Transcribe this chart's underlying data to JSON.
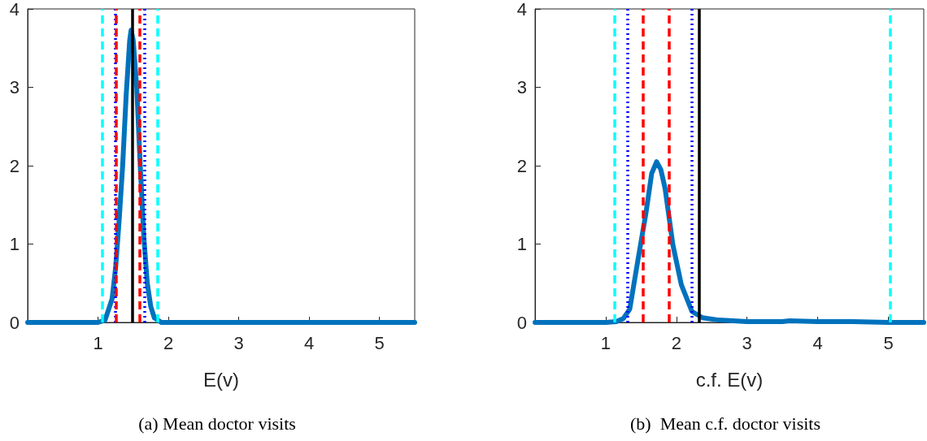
{
  "chart_data": [
    {
      "type": "line",
      "title": "(a) Mean doctor visits",
      "xlabel": "E(v)",
      "series": [
        {
          "color": "#0072bd",
          "x": [
            0,
            0.5,
            1.0,
            1.1,
            1.2,
            1.25,
            1.3,
            1.35,
            1.4,
            1.45,
            1.47,
            1.5,
            1.55,
            1.6,
            1.65,
            1.7,
            1.75,
            1.8,
            1.9,
            2.5,
            3,
            4,
            5,
            5.5
          ],
          "values": [
            0,
            0,
            0,
            0.03,
            0.3,
            0.7,
            1.3,
            2.0,
            2.9,
            3.6,
            3.73,
            3.6,
            3.0,
            2.0,
            1.1,
            0.5,
            0.2,
            0.06,
            0,
            0,
            0,
            0,
            0,
            0
          ]
        }
      ],
      "xlim": [
        0,
        5.5
      ],
      "xticks": [
        1,
        2,
        3,
        4,
        5
      ],
      "ylim": [
        0,
        4
      ],
      "yticks": [
        0,
        1,
        2,
        3,
        4
      ],
      "ref_lines": [
        {
          "axis": "x",
          "value": 1.06,
          "color": "#00ffff",
          "line_style": "dashed"
        },
        {
          "axis": "x",
          "value": 1.24,
          "color": "#0000ff",
          "line_style": "dotted"
        },
        {
          "axis": "x",
          "value": 1.26,
          "color": "#ff0000",
          "line_style": "dashed"
        },
        {
          "axis": "x",
          "value": 1.49,
          "color": "#000000",
          "line_style": "solid"
        },
        {
          "axis": "x",
          "value": 1.59,
          "color": "#ff0000",
          "line_style": "dashed"
        },
        {
          "axis": "x",
          "value": 1.66,
          "color": "#0000ff",
          "line_style": "dotted"
        },
        {
          "axis": "x",
          "value": 1.85,
          "color": "#00ffff",
          "line_style": "dashed"
        }
      ],
      "grid": false
    },
    {
      "type": "line",
      "title": "(b)  Mean c.f. doctor visits",
      "xlabel": "c.f. E(v)",
      "series": [
        {
          "color": "#0072bd",
          "x": [
            0,
            0.5,
            1.0,
            1.15,
            1.25,
            1.34,
            1.46,
            1.57,
            1.65,
            1.72,
            1.78,
            1.84,
            1.95,
            2.07,
            2.22,
            2.37,
            2.6,
            3.0,
            3.5,
            3.6,
            4.0,
            4.5,
            5.0,
            5.5
          ],
          "values": [
            0,
            0,
            0,
            0.01,
            0.05,
            0.17,
            0.82,
            1.4,
            1.9,
            2.05,
            1.95,
            1.71,
            0.99,
            0.48,
            0.14,
            0.06,
            0.03,
            0.01,
            0.01,
            0.02,
            0.01,
            0.01,
            0,
            0
          ]
        }
      ],
      "xlim": [
        0,
        5.5
      ],
      "xticks": [
        1,
        2,
        3,
        4,
        5
      ],
      "ylim": [
        0,
        4
      ],
      "yticks": [
        0,
        1,
        2,
        3,
        4
      ],
      "ref_lines": [
        {
          "axis": "x",
          "value": 1.13,
          "color": "#00ffff",
          "line_style": "dashed"
        },
        {
          "axis": "x",
          "value": 1.31,
          "color": "#0000ff",
          "line_style": "dotted"
        },
        {
          "axis": "x",
          "value": 1.535,
          "color": "#ff0000",
          "line_style": "dashed"
        },
        {
          "axis": "x",
          "value": 1.9,
          "color": "#ff0000",
          "line_style": "dashed"
        },
        {
          "axis": "x",
          "value": 2.22,
          "color": "#0000ff",
          "line_style": "dotted"
        },
        {
          "axis": "x",
          "value": 2.32,
          "color": "#000000",
          "line_style": "solid"
        },
        {
          "axis": "x",
          "value": 5.02,
          "color": "#00ffff",
          "line_style": "dashed"
        }
      ],
      "grid": false
    }
  ]
}
